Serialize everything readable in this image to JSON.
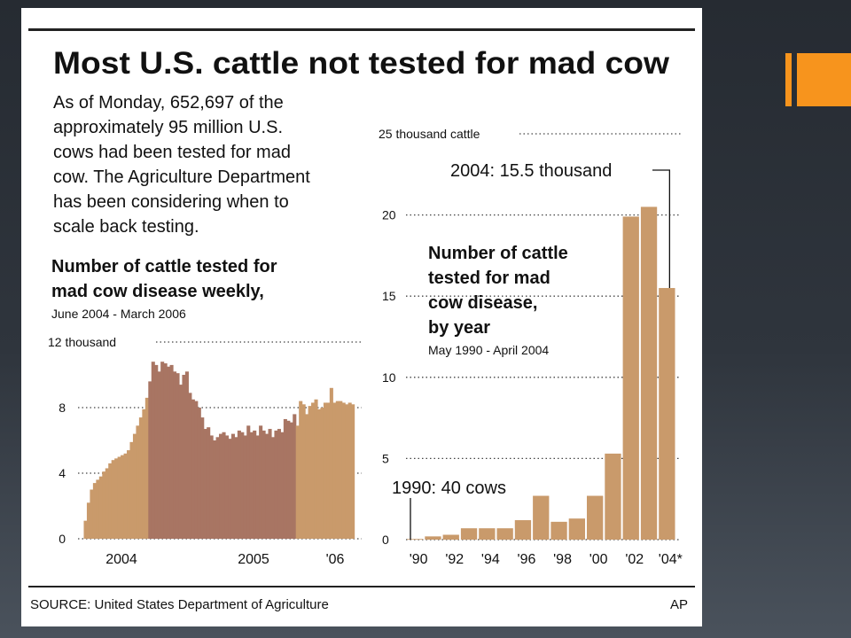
{
  "graphic": {
    "headline": "Most U.S. cattle not tested for mad cow",
    "intro_lines": [
      "As of Monday, 652,697 of the",
      "approximately 95 million U.S.",
      "cows had been tested for mad",
      "cow. The Agriculture Department",
      "has been considering when to",
      "scale back testing."
    ],
    "source": "SOURCE: United States Department of Agriculture",
    "credit": "AP"
  },
  "colors": {
    "bar_light": "#c99a6b",
    "bar_dark": "#a87563",
    "accent": "#f7941d",
    "grid": "#444444"
  },
  "chart_data": [
    {
      "type": "area",
      "title_lines": [
        "Number of cattle tested for",
        "mad cow disease weekly,"
      ],
      "subtitle": "June 2004 - March 2006",
      "xlabel": "",
      "ylabel": "",
      "ylim": [
        0,
        12
      ],
      "ytick_values": [
        0,
        4,
        8,
        12
      ],
      "ytick_labels": [
        "0",
        "4",
        "8",
        "12 thousand"
      ],
      "xtick_labels": [
        "2004",
        "2005",
        "'06"
      ],
      "x_domain": [
        "2004-06",
        "2006-03"
      ],
      "grid": true,
      "highlight_period": [
        "2004-10-31",
        "2005-09-25"
      ],
      "units": "thousand cattle per week",
      "series": [
        {
          "x": [
            "2004-06-06",
            "2004-06-13",
            "2004-06-20",
            "2004-06-27",
            "2004-07-04",
            "2004-07-11",
            "2004-07-18",
            "2004-07-25",
            "2004-08-01",
            "2004-08-08",
            "2004-08-15",
            "2004-08-22",
            "2004-08-29",
            "2004-09-05",
            "2004-09-12",
            "2004-09-19",
            "2004-09-26",
            "2004-10-03",
            "2004-10-10",
            "2004-10-17",
            "2004-10-24",
            "2004-10-31",
            "2004-11-07",
            "2004-11-14",
            "2004-11-21",
            "2004-11-28",
            "2004-12-05",
            "2004-12-12",
            "2004-12-19",
            "2004-12-26",
            "2005-01-02",
            "2005-01-09",
            "2005-01-16",
            "2005-01-23",
            "2005-01-30",
            "2005-02-06",
            "2005-02-13",
            "2005-02-20",
            "2005-02-27",
            "2005-03-06",
            "2005-03-13",
            "2005-03-20",
            "2005-03-27",
            "2005-04-03",
            "2005-04-10",
            "2005-04-17",
            "2005-04-24",
            "2005-05-01",
            "2005-05-08",
            "2005-05-15",
            "2005-05-22",
            "2005-05-29",
            "2005-06-05",
            "2005-06-12",
            "2005-06-19",
            "2005-06-26",
            "2005-07-03",
            "2005-07-10",
            "2005-07-17",
            "2005-07-24",
            "2005-07-31",
            "2005-08-07",
            "2005-08-14",
            "2005-08-21",
            "2005-08-28",
            "2005-09-04",
            "2005-09-11",
            "2005-09-18",
            "2005-09-25",
            "2005-10-02",
            "2005-10-09",
            "2005-10-16",
            "2005-10-23",
            "2005-10-30",
            "2005-11-06",
            "2005-11-13",
            "2005-11-20",
            "2005-11-27",
            "2005-12-04",
            "2005-12-11",
            "2005-12-18",
            "2005-12-25",
            "2006-01-01",
            "2006-01-08",
            "2006-01-15",
            "2006-01-22",
            "2006-01-29",
            "2006-02-05",
            "2006-02-12"
          ],
          "values": [
            1.1,
            2.2,
            3.0,
            3.4,
            3.6,
            3.8,
            4.1,
            4.3,
            4.6,
            4.8,
            4.9,
            5.0,
            5.1,
            5.2,
            5.4,
            5.9,
            6.4,
            6.9,
            7.4,
            7.9,
            8.6,
            9.6,
            10.8,
            10.6,
            10.2,
            10.8,
            10.7,
            10.5,
            10.6,
            10.2,
            10.1,
            9.4,
            10.0,
            10.2,
            8.9,
            8.5,
            8.4,
            8.0,
            7.4,
            6.7,
            6.8,
            6.3,
            6.0,
            6.2,
            6.4,
            6.5,
            6.3,
            6.1,
            6.4,
            6.2,
            6.6,
            6.5,
            6.3,
            6.9,
            6.5,
            6.6,
            6.3,
            6.9,
            6.6,
            6.4,
            6.7,
            6.2,
            6.6,
            6.7,
            6.5,
            7.3,
            7.2,
            7.1,
            7.6,
            6.9,
            8.4,
            8.2,
            7.6,
            8.1,
            8.3,
            8.5,
            7.9,
            8.0,
            8.3,
            8.3,
            9.2,
            8.3,
            8.4,
            8.4,
            8.3,
            8.2,
            8.3,
            8.2,
            8.3
          ]
        }
      ]
    },
    {
      "type": "bar",
      "title_lines": [
        "Number of cattle",
        "tested for mad",
        "cow disease,",
        "by year"
      ],
      "subtitle": "May 1990 - April 2004",
      "xlabel": "",
      "ylabel": "",
      "ylim": [
        0,
        25
      ],
      "ytick_values": [
        0,
        5,
        10,
        15,
        20,
        25
      ],
      "ytick_labels": [
        "0",
        "5",
        "10",
        "15",
        "20",
        "25 thousand cattle"
      ],
      "categories": [
        "'90",
        "'91",
        "'92",
        "'93",
        "'94",
        "'95",
        "'96",
        "'97",
        "'98",
        "'99",
        "'00",
        "'01",
        "'02",
        "'03",
        "'04*"
      ],
      "xtick_labels": [
        "'90",
        "'92",
        "'94",
        "'96",
        "'98",
        "'00",
        "'02",
        "'04*"
      ],
      "grid": true,
      "units": "thousand cattle",
      "series": [
        {
          "values": [
            0.04,
            0.2,
            0.3,
            0.7,
            0.7,
            0.7,
            1.2,
            2.7,
            1.1,
            1.3,
            2.7,
            5.3,
            19.9,
            20.5,
            15.5
          ]
        }
      ],
      "annotations": [
        {
          "text": "2004: 15.5 thousand",
          "category": "'04*"
        },
        {
          "text": "1990: 40 cows",
          "category": "'90"
        }
      ]
    }
  ]
}
